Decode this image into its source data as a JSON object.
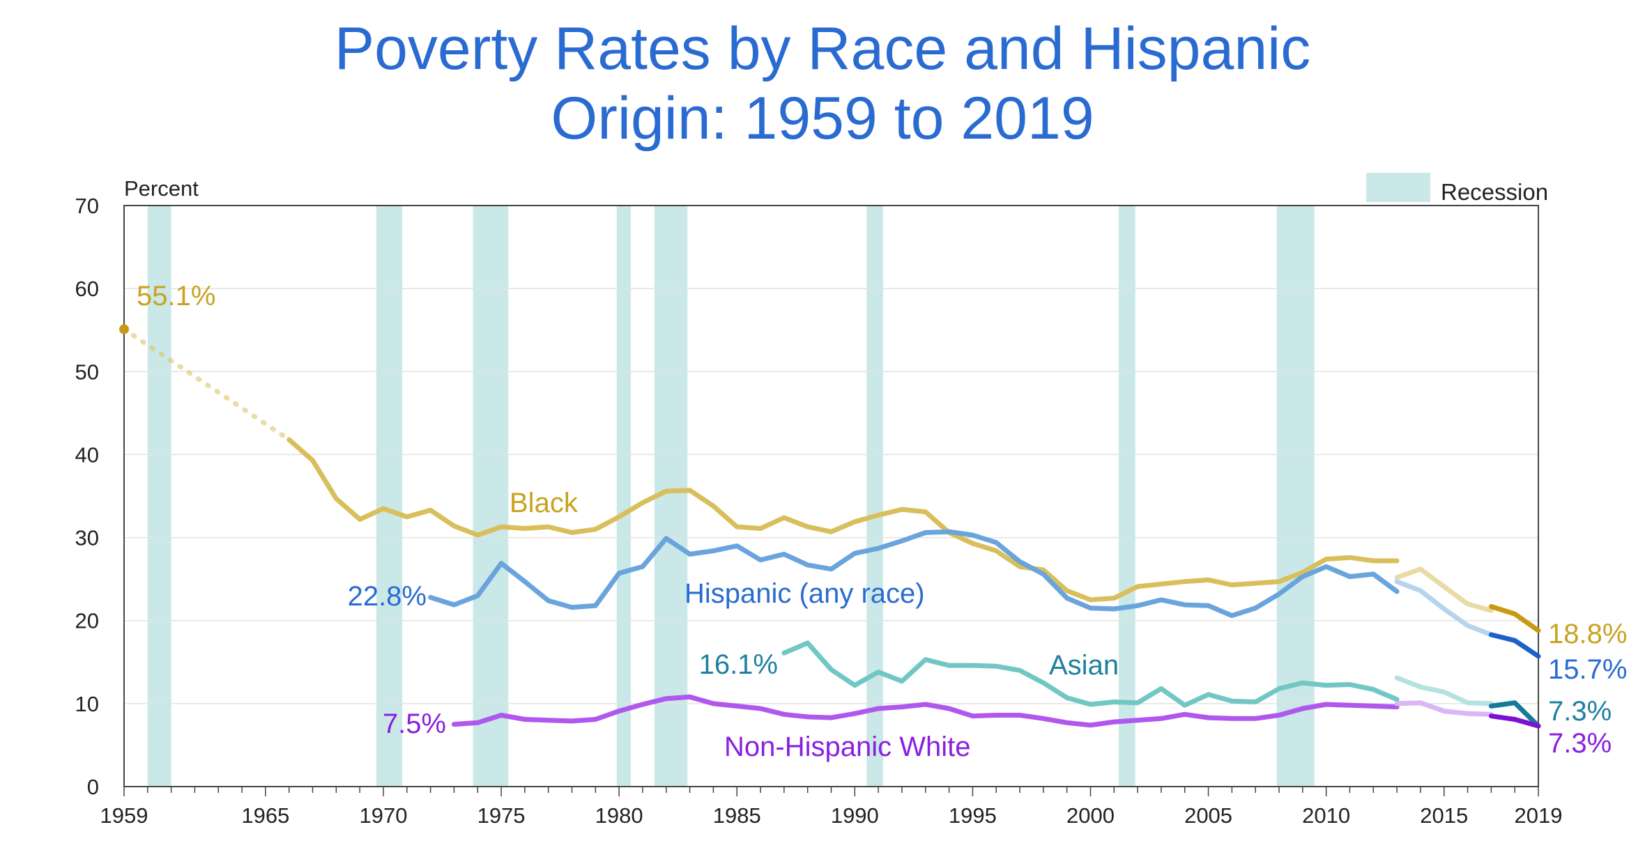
{
  "chart_data": {
    "type": "line",
    "title_lines": [
      "Poverty Rates by Race and Hispanic",
      "Origin: 1959 to 2019"
    ],
    "ylabel": "Percent",
    "ylim": [
      0,
      70
    ],
    "yticks": [
      0,
      10,
      20,
      30,
      40,
      50,
      60,
      70
    ],
    "xlim": [
      1959,
      2019
    ],
    "xticks": [
      1959,
      1965,
      1970,
      1975,
      1980,
      1985,
      1990,
      1995,
      2000,
      2005,
      2010,
      2015,
      2019
    ],
    "grid": true,
    "legend": {
      "label": "Recession",
      "placement": "top-right"
    },
    "recessions": [
      [
        1960,
        1961
      ],
      [
        1969.7,
        1970.8
      ],
      [
        1973.8,
        1975.3
      ],
      [
        1979.9,
        1980.5
      ],
      [
        1981.5,
        1982.9
      ],
      [
        1990.5,
        1991.2
      ],
      [
        2001.2,
        2001.9
      ],
      [
        2007.9,
        2009.5
      ]
    ],
    "series": [
      {
        "name": "Black",
        "color": "#d9bf5c",
        "color_2013_2017": "#e9dba6",
        "color_2017_2019": "#c79a12",
        "estimated_segment": [
          [
            1959,
            55.1
          ],
          [
            1966,
            41.8
          ]
        ],
        "values": [
          [
            1966,
            41.8
          ],
          [
            1967,
            39.3
          ],
          [
            1968,
            34.7
          ],
          [
            1969,
            32.2
          ],
          [
            1970,
            33.5
          ],
          [
            1971,
            32.5
          ],
          [
            1972,
            33.3
          ],
          [
            1973,
            31.4
          ],
          [
            1974,
            30.3
          ],
          [
            1975,
            31.3
          ],
          [
            1976,
            31.1
          ],
          [
            1977,
            31.3
          ],
          [
            1978,
            30.6
          ],
          [
            1979,
            31.0
          ],
          [
            1980,
            32.5
          ],
          [
            1981,
            34.2
          ],
          [
            1982,
            35.6
          ],
          [
            1983,
            35.7
          ],
          [
            1984,
            33.8
          ],
          [
            1985,
            31.3
          ],
          [
            1986,
            31.1
          ],
          [
            1987,
            32.4
          ],
          [
            1988,
            31.3
          ],
          [
            1989,
            30.7
          ],
          [
            1990,
            31.9
          ],
          [
            1991,
            32.7
          ],
          [
            1992,
            33.4
          ],
          [
            1993,
            33.1
          ],
          [
            1994,
            30.6
          ],
          [
            1995,
            29.3
          ],
          [
            1996,
            28.4
          ],
          [
            1997,
            26.5
          ],
          [
            1998,
            26.1
          ],
          [
            1999,
            23.6
          ],
          [
            2000,
            22.5
          ],
          [
            2001,
            22.7
          ],
          [
            2002,
            24.1
          ],
          [
            2003,
            24.4
          ],
          [
            2004,
            24.7
          ],
          [
            2005,
            24.9
          ],
          [
            2006,
            24.3
          ],
          [
            2007,
            24.5
          ],
          [
            2008,
            24.7
          ],
          [
            2009,
            25.8
          ],
          [
            2010,
            27.4
          ],
          [
            2011,
            27.6
          ],
          [
            2012,
            27.2
          ],
          [
            2013,
            27.2
          ]
        ],
        "values_2013_2017": [
          [
            2013,
            25.2
          ],
          [
            2014,
            26.2
          ],
          [
            2015,
            24.1
          ],
          [
            2016,
            22.0
          ],
          [
            2017,
            21.2
          ]
        ],
        "values_2017_2019": [
          [
            2017,
            21.7
          ],
          [
            2018,
            20.8
          ],
          [
            2019,
            18.8
          ]
        ]
      },
      {
        "name": "Hispanic (any race)",
        "color": "#6aa4dc",
        "color_2013_2017": "#b7d4ee",
        "color_2017_2019": "#1d5fcb",
        "values": [
          [
            1972,
            22.8
          ],
          [
            1973,
            21.9
          ],
          [
            1974,
            23.0
          ],
          [
            1975,
            26.9
          ],
          [
            1976,
            24.7
          ],
          [
            1977,
            22.4
          ],
          [
            1978,
            21.6
          ],
          [
            1979,
            21.8
          ],
          [
            1980,
            25.7
          ],
          [
            1981,
            26.5
          ],
          [
            1982,
            29.9
          ],
          [
            1983,
            28.0
          ],
          [
            1984,
            28.4
          ],
          [
            1985,
            29.0
          ],
          [
            1986,
            27.3
          ],
          [
            1987,
            28.0
          ],
          [
            1988,
            26.7
          ],
          [
            1989,
            26.2
          ],
          [
            1990,
            28.1
          ],
          [
            1991,
            28.7
          ],
          [
            1992,
            29.6
          ],
          [
            1993,
            30.6
          ],
          [
            1994,
            30.7
          ],
          [
            1995,
            30.3
          ],
          [
            1996,
            29.4
          ],
          [
            1997,
            27.1
          ],
          [
            1998,
            25.6
          ],
          [
            1999,
            22.7
          ],
          [
            2000,
            21.5
          ],
          [
            2001,
            21.4
          ],
          [
            2002,
            21.8
          ],
          [
            2003,
            22.5
          ],
          [
            2004,
            21.9
          ],
          [
            2005,
            21.8
          ],
          [
            2006,
            20.6
          ],
          [
            2007,
            21.5
          ],
          [
            2008,
            23.2
          ],
          [
            2009,
            25.3
          ],
          [
            2010,
            26.5
          ],
          [
            2011,
            25.3
          ],
          [
            2012,
            25.6
          ],
          [
            2013,
            23.5
          ]
        ],
        "values_2013_2017": [
          [
            2013,
            24.7
          ],
          [
            2014,
            23.6
          ],
          [
            2015,
            21.4
          ],
          [
            2016,
            19.4
          ],
          [
            2017,
            18.3
          ]
        ],
        "values_2017_2019": [
          [
            2017,
            18.3
          ],
          [
            2018,
            17.6
          ],
          [
            2019,
            15.7
          ]
        ]
      },
      {
        "name": "Asian",
        "color": "#72c7c5",
        "color_2013_2017": "#b5e2e1",
        "color_2017_2019": "#167a9a",
        "values": [
          [
            1987,
            16.1
          ],
          [
            1988,
            17.3
          ],
          [
            1989,
            14.1
          ],
          [
            1990,
            12.2
          ],
          [
            1991,
            13.8
          ],
          [
            1992,
            12.7
          ],
          [
            1993,
            15.3
          ],
          [
            1994,
            14.6
          ],
          [
            1995,
            14.6
          ],
          [
            1996,
            14.5
          ],
          [
            1997,
            14.0
          ],
          [
            1998,
            12.5
          ],
          [
            1999,
            10.7
          ],
          [
            2000,
            9.9
          ],
          [
            2001,
            10.2
          ],
          [
            2002,
            10.1
          ],
          [
            2003,
            11.8
          ],
          [
            2004,
            9.8
          ],
          [
            2005,
            11.1
          ],
          [
            2006,
            10.3
          ],
          [
            2007,
            10.2
          ],
          [
            2008,
            11.8
          ],
          [
            2009,
            12.5
          ],
          [
            2010,
            12.2
          ],
          [
            2011,
            12.3
          ],
          [
            2012,
            11.7
          ],
          [
            2013,
            10.5
          ]
        ],
        "values_2013_2017": [
          [
            2013,
            13.1
          ],
          [
            2014,
            12.0
          ],
          [
            2015,
            11.4
          ],
          [
            2016,
            10.1
          ],
          [
            2017,
            10.0
          ]
        ],
        "values_2017_2019": [
          [
            2017,
            9.7
          ],
          [
            2018,
            10.1
          ],
          [
            2019,
            7.3
          ]
        ]
      },
      {
        "name": "Non-Hispanic White",
        "color": "#b058ee",
        "color_2013_2017": "#d9b6f6",
        "color_2017_2019": "#7a12d6",
        "values": [
          [
            1973,
            7.5
          ],
          [
            1974,
            7.7
          ],
          [
            1975,
            8.6
          ],
          [
            1976,
            8.1
          ],
          [
            1977,
            8.0
          ],
          [
            1978,
            7.9
          ],
          [
            1979,
            8.1
          ],
          [
            1980,
            9.1
          ],
          [
            1981,
            9.9
          ],
          [
            1982,
            10.6
          ],
          [
            1983,
            10.8
          ],
          [
            1984,
            10.0
          ],
          [
            1985,
            9.7
          ],
          [
            1986,
            9.4
          ],
          [
            1987,
            8.7
          ],
          [
            1988,
            8.4
          ],
          [
            1989,
            8.3
          ],
          [
            1990,
            8.8
          ],
          [
            1991,
            9.4
          ],
          [
            1992,
            9.6
          ],
          [
            1993,
            9.9
          ],
          [
            1994,
            9.4
          ],
          [
            1995,
            8.5
          ],
          [
            1996,
            8.6
          ],
          [
            1997,
            8.6
          ],
          [
            1998,
            8.2
          ],
          [
            1999,
            7.7
          ],
          [
            2000,
            7.4
          ],
          [
            2001,
            7.8
          ],
          [
            2002,
            8.0
          ],
          [
            2003,
            8.2
          ],
          [
            2004,
            8.7
          ],
          [
            2005,
            8.3
          ],
          [
            2006,
            8.2
          ],
          [
            2007,
            8.2
          ],
          [
            2008,
            8.6
          ],
          [
            2009,
            9.4
          ],
          [
            2010,
            9.9
          ],
          [
            2011,
            9.8
          ],
          [
            2012,
            9.7
          ],
          [
            2013,
            9.6
          ]
        ],
        "values_2013_2017": [
          [
            2013,
            10.0
          ],
          [
            2014,
            10.1
          ],
          [
            2015,
            9.1
          ],
          [
            2016,
            8.8
          ],
          [
            2017,
            8.7
          ]
        ],
        "values_2017_2019": [
          [
            2017,
            8.5
          ],
          [
            2018,
            8.1
          ],
          [
            2019,
            7.3
          ]
        ]
      }
    ],
    "annotations": {
      "black_start": "55.1%",
      "black_end": "18.8%",
      "hispanic_start": "22.8%",
      "hispanic_end": "15.7%",
      "asian_start": "16.1%",
      "asian_end": "7.3%",
      "white_start": "7.5%",
      "white_end": "7.3%"
    }
  }
}
